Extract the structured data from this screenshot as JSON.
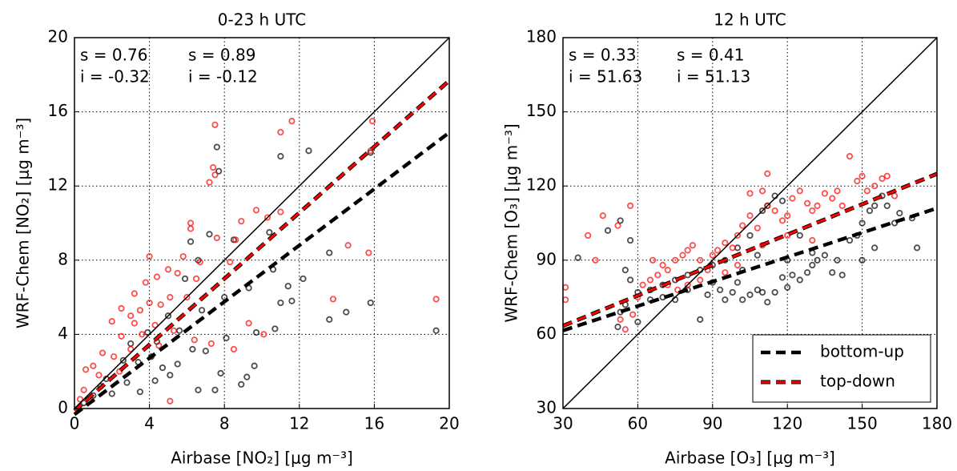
{
  "chart_data": [
    {
      "type": "scatter",
      "title": "0-23 h UTC",
      "x_label": "Airbase [NO₂] [μg m⁻³]",
      "y_label": "WRF-Chem [NO₂] [μg m⁻³]",
      "xlim": [
        0,
        20
      ],
      "ylim": [
        0,
        20
      ],
      "xticks": [
        0,
        4,
        8,
        12,
        16,
        20
      ],
      "yticks": [
        0,
        4,
        8,
        12,
        16,
        20
      ],
      "grid": true,
      "series": [
        {
          "color": "#000000",
          "x": [
            7.6,
            7.7,
            11,
            12.5,
            15.8,
            7.2,
            6.2,
            8.5,
            10.4,
            6.6,
            5.9,
            9.3,
            8.0,
            10.6,
            11.4,
            12.2,
            13.6,
            11.0,
            11.6,
            13.6,
            14.5,
            15.8,
            19.3,
            9.7,
            10.7,
            9.6,
            9.2,
            8.9,
            7.8,
            7.5,
            6.6,
            5.1,
            4.3,
            3.5,
            2.0,
            1.0,
            0.5,
            1.7,
            2.8,
            3.4,
            4.1,
            4.7,
            5.5,
            6.3,
            2.6,
            1.4,
            3.9,
            4.4,
            5.6,
            7.0,
            8.1,
            3.0,
            6.8,
            5.0
          ],
          "values": [
            14.1,
            12.8,
            13.6,
            13.9,
            13.8,
            9.4,
            9.0,
            9.1,
            9.5,
            8.0,
            7.0,
            6.5,
            6.0,
            7.5,
            6.6,
            7.0,
            8.4,
            5.7,
            5.8,
            4.8,
            5.2,
            5.7,
            4.2,
            4.1,
            4.3,
            2.3,
            1.7,
            1.3,
            1.9,
            1.0,
            1.0,
            1.8,
            1.5,
            0.9,
            0.8,
            0.7,
            0.3,
            1.6,
            1.4,
            2.5,
            2.8,
            2.2,
            2.4,
            3.2,
            2.6,
            1.2,
            4.1,
            3.6,
            4.2,
            3.1,
            3.8,
            3.5,
            5.3,
            5.0
          ],
          "fit": {
            "slope": 0.76,
            "intercept": -0.32,
            "slope_label": "s = 0.76",
            "intercept_label": "i = -0.32"
          }
        },
        {
          "color": "#ff0000",
          "x": [
            7.5,
            11,
            11.6,
            15.9,
            7.4,
            7.5,
            7.2,
            15.8,
            9.7,
            10.3,
            11,
            8.9,
            6.2,
            7.6,
            6.2,
            8.6,
            5.8,
            6.7,
            8.3,
            4.0,
            5.0,
            5.5,
            3.8,
            4.4,
            6.5,
            15.7,
            14.6,
            19.3,
            13.8,
            3.2,
            4.0,
            5.1,
            6.0,
            2.5,
            3.0,
            3.5,
            4.6,
            2.0,
            3.2,
            4.3,
            5.3,
            2.5,
            3.6,
            4.5,
            3.0,
            1.5,
            2.1,
            6.4,
            7.3,
            8.5,
            1.0,
            0.6,
            1.3,
            2.4,
            0.5,
            0.3,
            0.8,
            5.1,
            9.3,
            10.1
          ],
          "values": [
            15.3,
            14.9,
            15.5,
            15.5,
            13,
            12.6,
            12.2,
            13.9,
            10.7,
            10.3,
            10.6,
            10.1,
            10,
            9.2,
            9.7,
            9.1,
            8.2,
            7.9,
            7.9,
            8.2,
            7.5,
            7.3,
            6.8,
            7.1,
            7.0,
            8.4,
            8.8,
            5.9,
            5.9,
            6.2,
            5.7,
            6.0,
            6.0,
            5.4,
            5.0,
            5.3,
            5.6,
            4.7,
            4.6,
            4.5,
            4.2,
            3.9,
            4.0,
            3.4,
            3.2,
            3.0,
            2.8,
            3.7,
            3.5,
            3.2,
            2.3,
            2.1,
            1.8,
            2.0,
            1.0,
            0.5,
            0.4,
            0.4,
            4.6,
            4.0
          ],
          "fit": {
            "slope": 0.89,
            "intercept": -0.12,
            "slope_label": "s = 0.89",
            "intercept_label": "i = -0.12"
          }
        }
      ]
    },
    {
      "type": "scatter",
      "title": "12 h UTC",
      "x_label": "Airbase [O₃] [μg m⁻³]",
      "y_label": "WRF-Chem [O₃] [μg m⁻³]",
      "xlim": [
        30,
        180
      ],
      "ylim": [
        30,
        180
      ],
      "xticks": [
        30,
        60,
        90,
        120,
        150,
        180
      ],
      "yticks": [
        30,
        60,
        90,
        120,
        150,
        180
      ],
      "grid": true,
      "legend": "lower right",
      "series": [
        {
          "name": "bottom-up",
          "color": "#000000",
          "x": [
            53,
            48,
            57,
            36,
            55,
            57,
            60,
            55,
            53,
            52,
            60,
            65,
            70,
            75,
            80,
            85,
            88,
            90,
            93,
            95,
            98,
            100,
            102,
            105,
            108,
            110,
            112,
            115,
            118,
            120,
            122,
            125,
            128,
            130,
            132,
            135,
            138,
            140,
            142,
            145,
            148,
            150,
            153,
            155,
            158,
            160,
            165,
            170,
            172,
            115,
            118,
            112,
            110,
            100,
            95,
            90,
            85,
            80,
            75,
            70,
            65,
            105,
            108,
            125,
            130,
            150,
            155,
            163,
            120,
            102
          ],
          "values": [
            106,
            102,
            98,
            91,
            86,
            82,
            77,
            72,
            69,
            63,
            65,
            74,
            75,
            74,
            78,
            66,
            76,
            81,
            78,
            74,
            77,
            81,
            74,
            76,
            78,
            77,
            73,
            77,
            83,
            79,
            84,
            82,
            85,
            88,
            90,
            92,
            85,
            90,
            84,
            98,
            100,
            105,
            110,
            112,
            116,
            112,
            109,
            107,
            95,
            116,
            114,
            112,
            110,
            95,
            90,
            88,
            86,
            84,
            82,
            80,
            78,
            100,
            92,
            100,
            93,
            90,
            95,
            105,
            90,
            86
          ],
          "fit": {
            "slope": 0.33,
            "intercept": 51.63,
            "slope_label": "s = 0.33",
            "intercept_label": "i = 51.63"
          }
        },
        {
          "name": "top-down",
          "color": "#ff0000",
          "x": [
            31,
            31,
            40,
            46,
            57,
            52,
            43,
            66,
            70,
            72,
            75,
            78,
            80,
            82,
            85,
            88,
            90,
            92,
            95,
            98,
            100,
            102,
            105,
            108,
            110,
            112,
            115,
            118,
            120,
            122,
            125,
            128,
            130,
            132,
            135,
            138,
            140,
            142,
            145,
            148,
            150,
            152,
            155,
            158,
            160,
            163,
            55,
            53,
            58,
            60,
            62,
            65,
            68,
            72,
            76,
            80,
            85,
            95,
            100,
            110,
            120,
            130,
            112,
            105
          ],
          "values": [
            79,
            74,
            100,
            108,
            112,
            104,
            90,
            90,
            88,
            86,
            90,
            92,
            94,
            96,
            90,
            86,
            92,
            94,
            97,
            95,
            100,
            104,
            108,
            103,
            118,
            112,
            110,
            106,
            108,
            115,
            118,
            113,
            110,
            112,
            117,
            115,
            118,
            112,
            132,
            122,
            124,
            118,
            120,
            123,
            124,
            116,
            62,
            66,
            68,
            75,
            80,
            82,
            84,
            80,
            78,
            80,
            82,
            85,
            88,
            96,
            100,
            98,
            125,
            117
          ],
          "fit": {
            "slope": 0.41,
            "intercept": 51.13,
            "slope_label": "s = 0.41",
            "intercept_label": "i = 51.13"
          }
        }
      ]
    }
  ]
}
